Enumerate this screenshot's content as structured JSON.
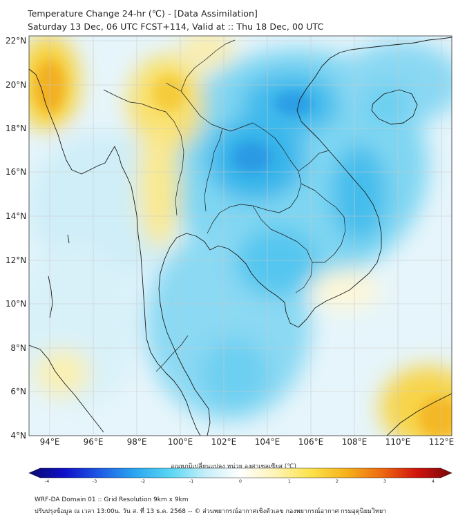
{
  "header": {
    "title": "Temperature Change 24-hr (℃) - [Data Assimilation]",
    "subtitle": "Saturday 13 Dec, 06 UTC FCST+114, Valid at :: Thu 18 Dec, 00 UTC"
  },
  "map": {
    "lat_labels": [
      "22°N",
      "20°N",
      "18°N",
      "16°N",
      "14°N",
      "12°N",
      "10°N",
      "8°N",
      "6°N",
      "4°N"
    ],
    "lon_labels": [
      "94°E",
      "96°E",
      "98°E",
      "100°E",
      "102°E",
      "104°E",
      "106°E",
      "108°E",
      "110°E",
      "112°E"
    ],
    "lat_range": [
      4,
      22
    ],
    "lon_range": [
      93,
      112.5
    ],
    "colors": {
      "ocean_base": "#e8f6fb",
      "coastline": "#1a1a1a",
      "grid": "#c8c8c8",
      "warm": "#f7d01a",
      "cool": "#22b8e8",
      "cold": "#1e78d8"
    }
  },
  "colorbar": {
    "title": "อุณหภูมิเปลี่ยนแปลง หน่วย องศาเซลเซียส (℃)",
    "ticks": [
      "-4",
      "-3",
      "-2",
      "-1",
      "0",
      "1",
      "2",
      "3",
      "4"
    ],
    "range": [
      -4,
      4
    ],
    "colors": [
      "#0a0a6e",
      "#1010c8",
      "#1e5ae6",
      "#2aa6f0",
      "#58d6f4",
      "#c6eef8",
      "#ffffff",
      "#fff4b4",
      "#fce24a",
      "#f6b21c",
      "#ee6a10",
      "#d2140e",
      "#78060a"
    ]
  },
  "footer": {
    "line1": "WRF-DA Domain 01 :: Grid Resolution 9km x 9km",
    "line2": "ปรับปรุงข้อมูล ณ เวลา 13:00น. วัน ส. ที่ 13 ธ.ค. 2568 -- © ส่วนพยากรณ์อากาศเชิงตัวเลข กองพยากรณ์อากาศ กรมอุตุนิยมวิทยา"
  }
}
